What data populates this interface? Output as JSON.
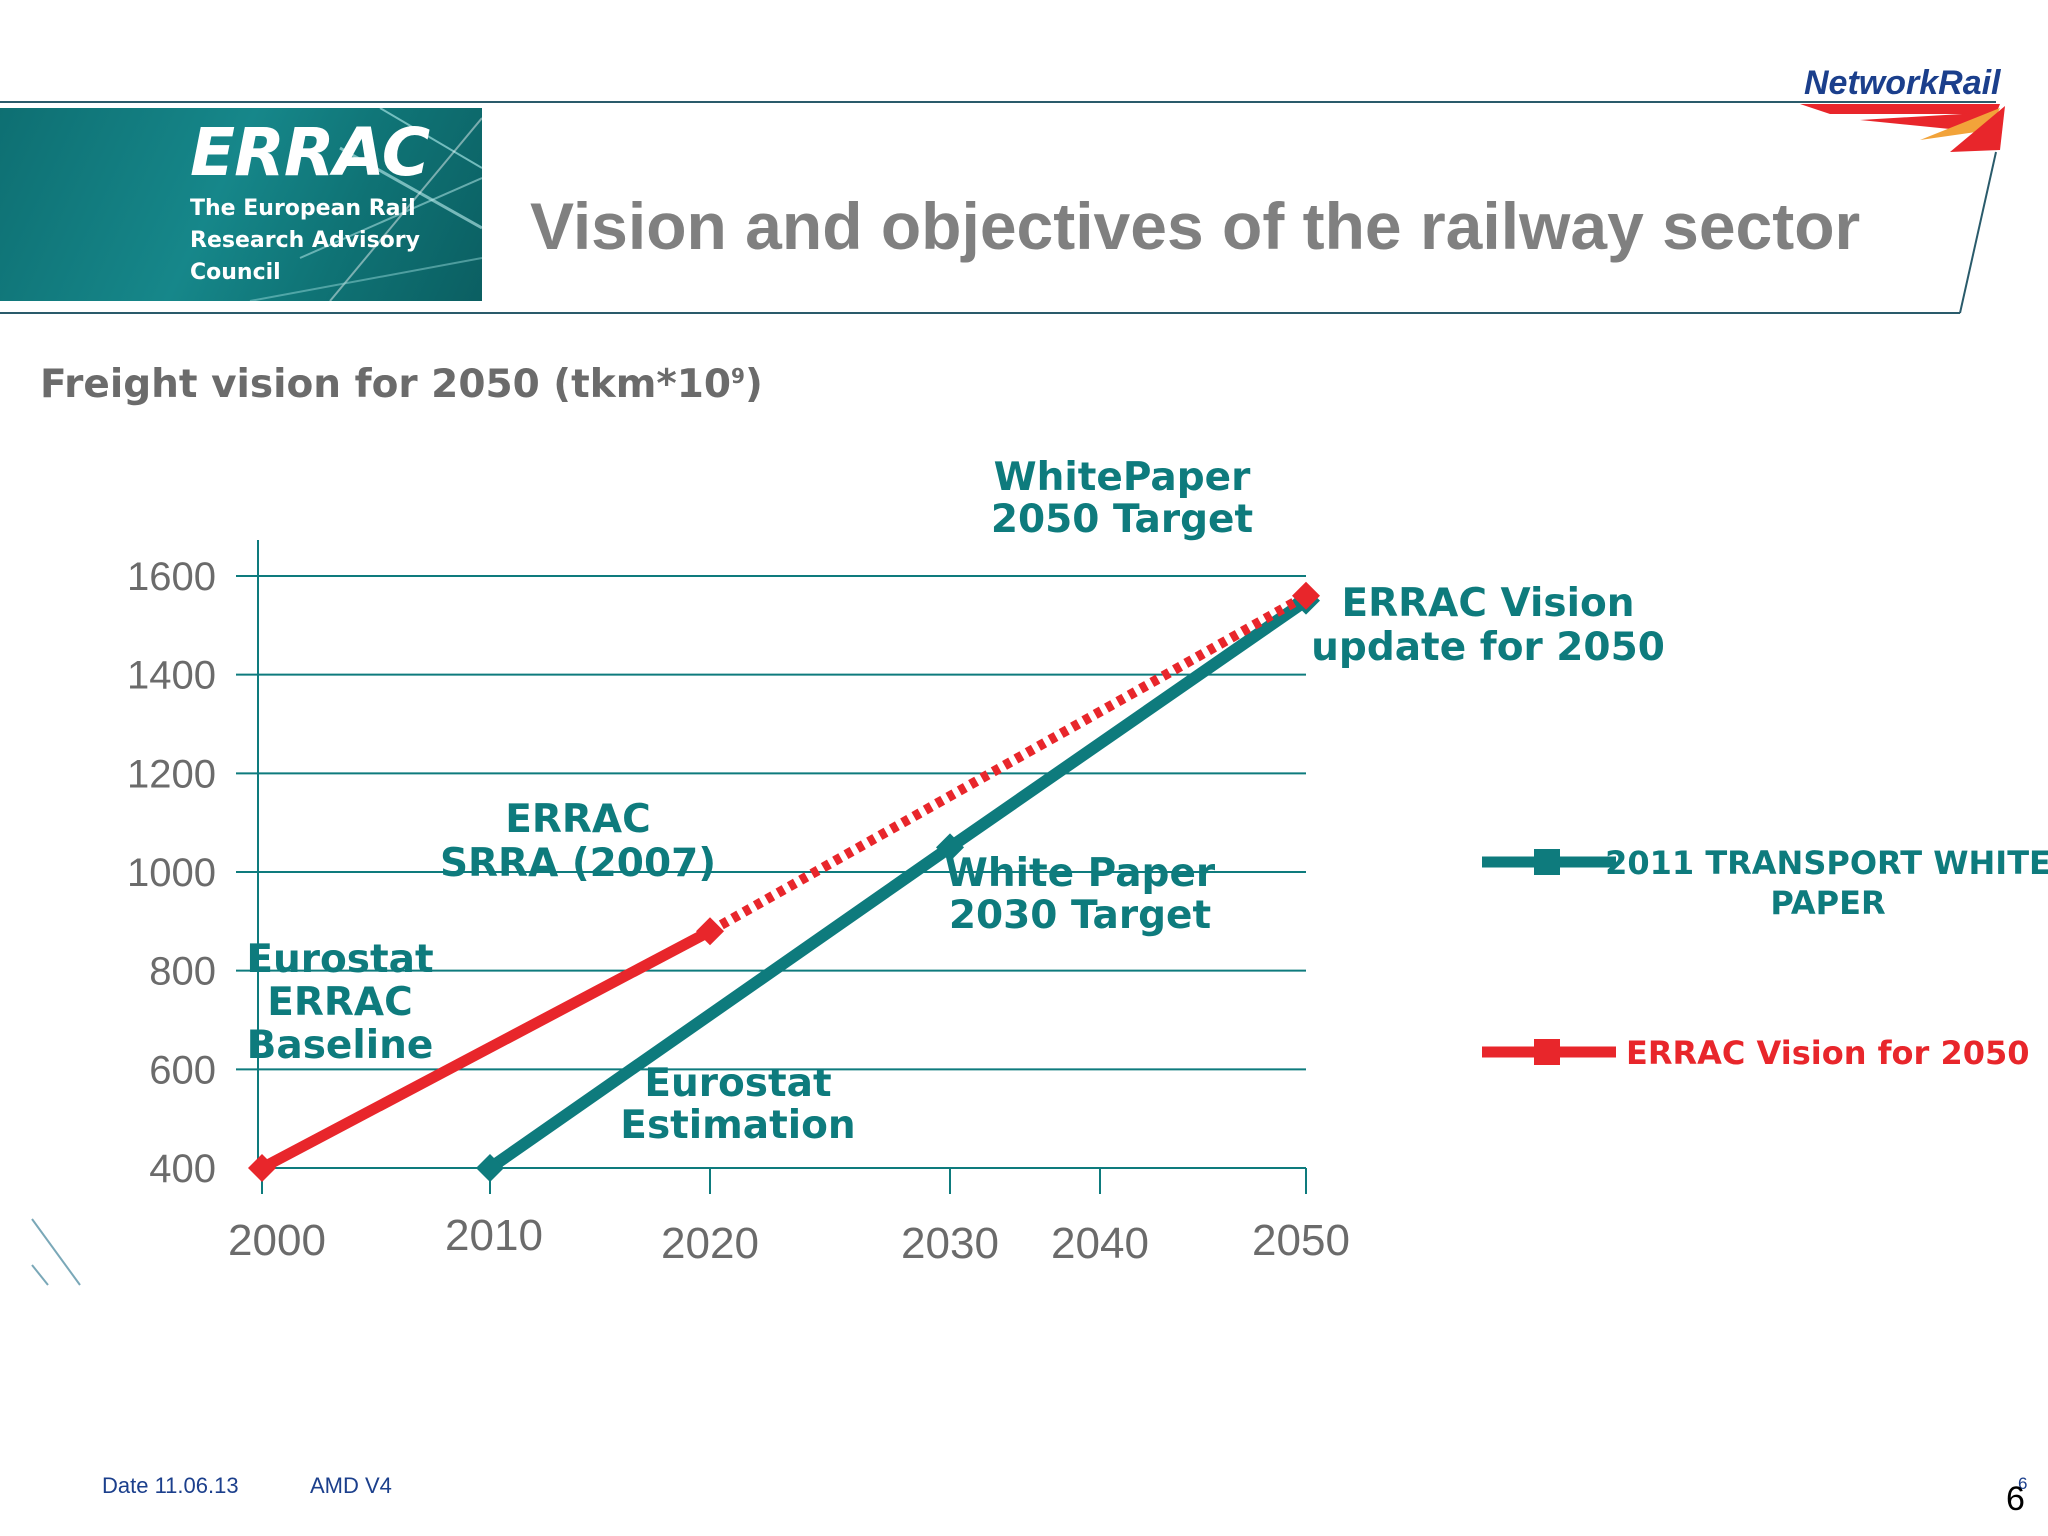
{
  "header": {
    "title": "Vision and objectives of the railway sector",
    "errac_logo": {
      "wordmark": "ERRAC",
      "subtitle": "The European Rail\nResearch Advisory\nCouncil"
    },
    "networkrail_logo": {
      "wordmark": "NetworkRail"
    }
  },
  "colors": {
    "teal": "#0e7b7d",
    "red": "#e8262b",
    "axis_text": "#6b6b6b",
    "gridline": "#0e7b7d",
    "header_rule": "#2a5b6b"
  },
  "chart_subtitle": {
    "main": "Freight vision for 2050 (tkm*10",
    "exponent": "9",
    "close": ")"
  },
  "chart_data": {
    "type": "line",
    "x_tick_labels": [
      "2000",
      "2010",
      "2020",
      "2030",
      "2040",
      "2050"
    ],
    "y_ticks": [
      400,
      600,
      800,
      1000,
      1200,
      1400,
      1600
    ],
    "ylim": [
      400,
      1600
    ],
    "grid": true,
    "legend_position": "right",
    "series": [
      {
        "name": "2011 TRANSPORT WHITE PAPER",
        "color": "#0e7b7d",
        "style": "solid",
        "points": [
          {
            "x": "2010",
            "y": 400
          },
          {
            "x": "2030",
            "y": 1050
          },
          {
            "x": "2050",
            "y": 1550
          }
        ]
      },
      {
        "name": "ERRAC Vision for 2050",
        "color": "#e8262b",
        "style": "solid-then-dotted",
        "points": [
          {
            "x": "2000",
            "y": 400
          },
          {
            "x": "2020",
            "y": 880
          },
          {
            "x": "2050",
            "y": 1560
          }
        ]
      }
    ],
    "annotations": [
      {
        "text": "Eurostat\nERRAC\nBaseline",
        "color": "#0e7b7d"
      },
      {
        "text": "ERRAC\nSRRA (2007)",
        "color": "#0e7b7d"
      },
      {
        "text": "Eurostat\nEstimation",
        "color": "#0e7b7d"
      },
      {
        "text": "White Paper\n2030 Target",
        "color": "#0e7b7d"
      },
      {
        "text": "WhitePaper\n2050 Target",
        "color": "#0e7b7d"
      },
      {
        "text": "ERRAC Vision\nupdate for 2050",
        "color": "#0e7b7d"
      }
    ]
  },
  "footer": {
    "date": "Date 11.06.13",
    "version": "AMD V4",
    "page_small": "6",
    "page_large": "6"
  }
}
